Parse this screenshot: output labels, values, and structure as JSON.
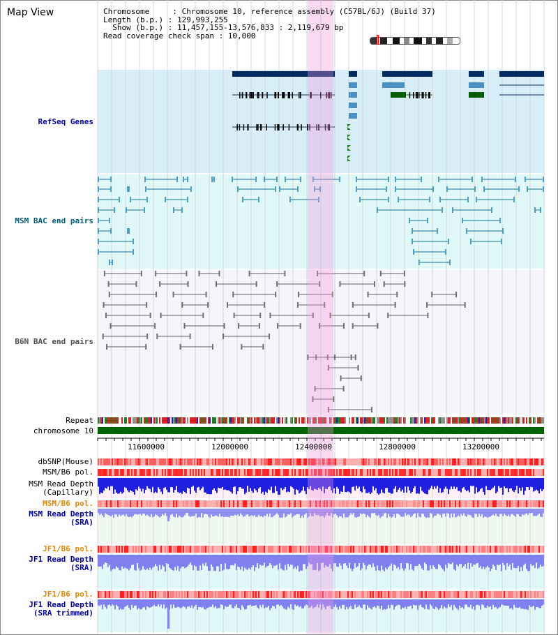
{
  "view_title": "Map View",
  "info": {
    "line1": "Chromosome     : Chromosome 10, reference assembly (C57BL/6J) (Build 37)",
    "line2": "Length (b.p.) : 129,993,255",
    "line3": "  Show (b.p.) : 11,457,155-13,576,833 : 2,119,679 bp",
    "line4": "Read coverage check span : 10,000"
  },
  "tracks": {
    "refseq": "RefSeq Genes",
    "msm_bac": "MSM BAC end pairs",
    "b6n_bac": "B6N BAC end pairs",
    "repeat": "Repeat",
    "chromosome": "chromosome 10",
    "dbsnp": "dbSNP(Mouse)",
    "msm_b6_pol": "MSM/B6 pol.",
    "msm_read_depth_cap": "MSM Read Depth\n(Capillary)",
    "msm_b6_pol_2": "MSM/B6 pol.",
    "msm_read_depth_sra": "MSM Read Depth\n(SRA)",
    "jf1_b6_pol": "JF1/B6 pol.",
    "jf1_read_depth_sra": "JF1 Read Depth\n(SRA)",
    "jf1_b6_pol_2": "JF1/B6 pol.",
    "jf1_read_depth_trim": "JF1 Read Depth\n(SRA trimmed)"
  },
  "axis_ticks": [
    "11600000",
    "12000000",
    "12400000",
    "12800000",
    "13200000"
  ],
  "colors": {
    "refseq_bg": "#d8effa",
    "msm_bg": "#e0f8f8",
    "b6n_bg": "#f4f4f8",
    "gene_dark": "#002a60",
    "gene_mid": "#4a90c0",
    "gene_green": "#006000",
    "msm_line": "#1a6f8f",
    "b6n_line": "#606060",
    "chromosome_bar": "#006400",
    "highlight": "#f0a0e0"
  }
}
